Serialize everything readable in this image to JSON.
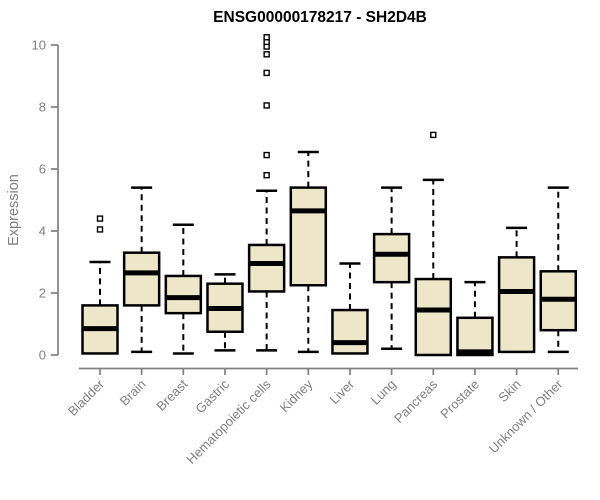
{
  "title": "ENSG00000178217 - SH2D4B",
  "chart_data": {
    "type": "boxplot",
    "title": "ENSG00000178217 - SH2D4B",
    "xlabel": "",
    "ylabel": "Expression",
    "ylim": [
      0,
      10
    ],
    "yticks": [
      0,
      2,
      4,
      6,
      8,
      10
    ],
    "grid": false,
    "legend": "none",
    "colors": {
      "box_fill": "#EDE6C9",
      "box_stroke": "#000000",
      "median": "#000000",
      "whisker": "#000000",
      "axis": "#808080",
      "title": "#000000",
      "background": "#FFFFFF"
    },
    "categories": [
      "Bladder",
      "Brain",
      "Breast",
      "Gastric",
      "Hematopoietic cells",
      "Kidney",
      "Liver",
      "Lung",
      "Pancreas",
      "Prostate",
      "Skin",
      "Unknown / Other"
    ],
    "series": [
      {
        "category": "Bladder",
        "whisker_low": 0.05,
        "q1": 0.05,
        "median": 0.85,
        "q3": 1.6,
        "whisker_high": 3.0,
        "outliers": [
          4.05,
          4.4
        ]
      },
      {
        "category": "Brain",
        "whisker_low": 0.1,
        "q1": 1.6,
        "median": 2.65,
        "q3": 3.3,
        "whisker_high": 5.4,
        "outliers": []
      },
      {
        "category": "Breast",
        "whisker_low": 0.05,
        "q1": 1.35,
        "median": 1.85,
        "q3": 2.55,
        "whisker_high": 4.2,
        "outliers": []
      },
      {
        "category": "Gastric",
        "whisker_low": 0.15,
        "q1": 0.75,
        "median": 1.5,
        "q3": 2.3,
        "whisker_high": 2.6,
        "outliers": []
      },
      {
        "category": "Hematopoietic cells",
        "whisker_low": 0.15,
        "q1": 2.05,
        "median": 2.95,
        "q3": 3.55,
        "whisker_high": 5.3,
        "outliers": [
          5.8,
          6.45,
          8.05,
          9.1,
          9.7,
          9.95,
          10.1,
          10.25
        ]
      },
      {
        "category": "Kidney",
        "whisker_low": 0.1,
        "q1": 2.25,
        "median": 4.65,
        "q3": 5.4,
        "whisker_high": 6.55,
        "outliers": []
      },
      {
        "category": "Liver",
        "whisker_low": 0.05,
        "q1": 0.05,
        "median": 0.4,
        "q3": 1.45,
        "whisker_high": 2.95,
        "outliers": []
      },
      {
        "category": "Lung",
        "whisker_low": 0.2,
        "q1": 2.35,
        "median": 3.25,
        "q3": 3.9,
        "whisker_high": 5.4,
        "outliers": []
      },
      {
        "category": "Pancreas",
        "whisker_low": 0.0,
        "q1": 0.0,
        "median": 1.45,
        "q3": 2.45,
        "whisker_high": 5.65,
        "outliers": [
          7.1
        ]
      },
      {
        "category": "Prostate",
        "whisker_low": 0.0,
        "q1": 0.0,
        "median": 0.1,
        "q3": 1.2,
        "whisker_high": 2.35,
        "outliers": []
      },
      {
        "category": "Skin",
        "whisker_low": 0.1,
        "q1": 0.1,
        "median": 2.05,
        "q3": 3.15,
        "whisker_high": 4.1,
        "outliers": []
      },
      {
        "category": "Unknown / Other",
        "whisker_low": 0.1,
        "q1": 0.8,
        "median": 1.8,
        "q3": 2.7,
        "whisker_high": 5.4,
        "outliers": []
      }
    ]
  }
}
